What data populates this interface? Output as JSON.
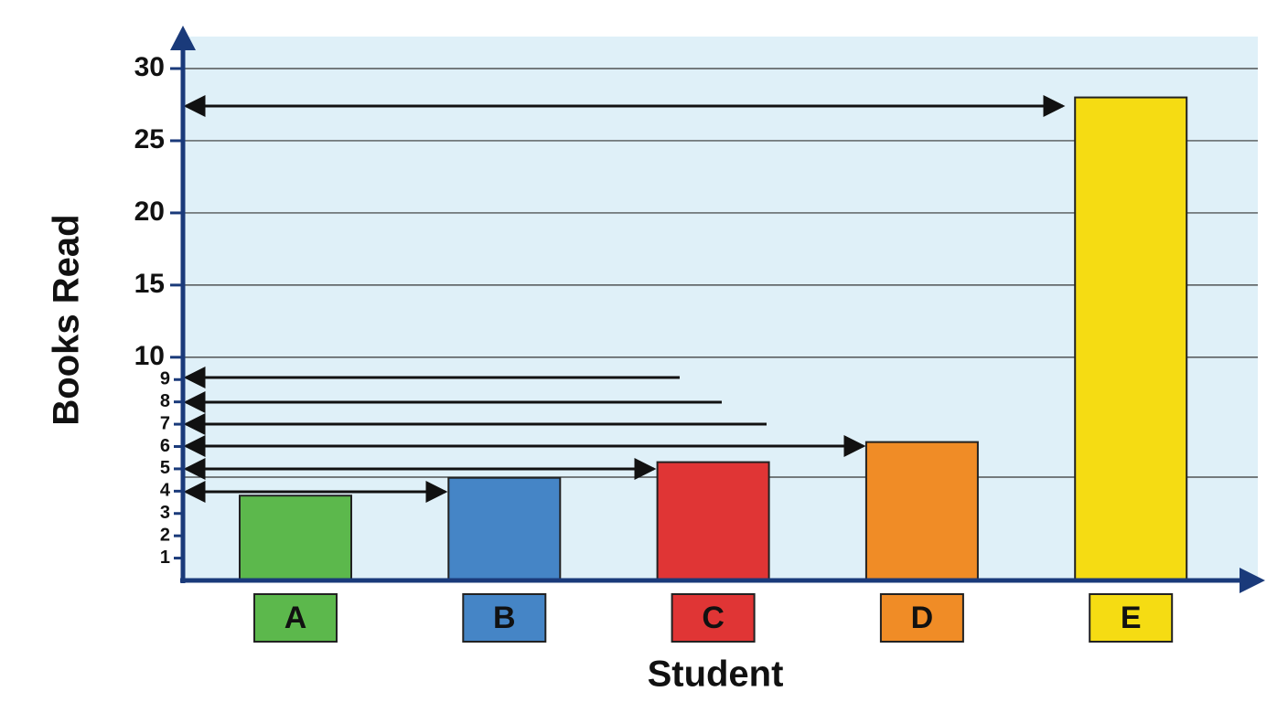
{
  "chart_data": {
    "type": "bar",
    "x_label": "Student",
    "y_label": "Books Read",
    "categories": [
      "A",
      "B",
      "C",
      "D",
      "E"
    ],
    "values": [
      3.8,
      4.6,
      5.3,
      6.2,
      28
    ],
    "colors": [
      "#5cb84c",
      "#4585c6",
      "#e03535",
      "#f08c26",
      "#f5dc13"
    ],
    "ylim": [
      0,
      30
    ],
    "ybreak": 10,
    "yticks": [
      10,
      15,
      20,
      25,
      30
    ],
    "yminorticks": [
      1,
      2,
      3,
      4,
      5,
      6,
      7,
      8,
      9
    ],
    "grid": true
  }
}
